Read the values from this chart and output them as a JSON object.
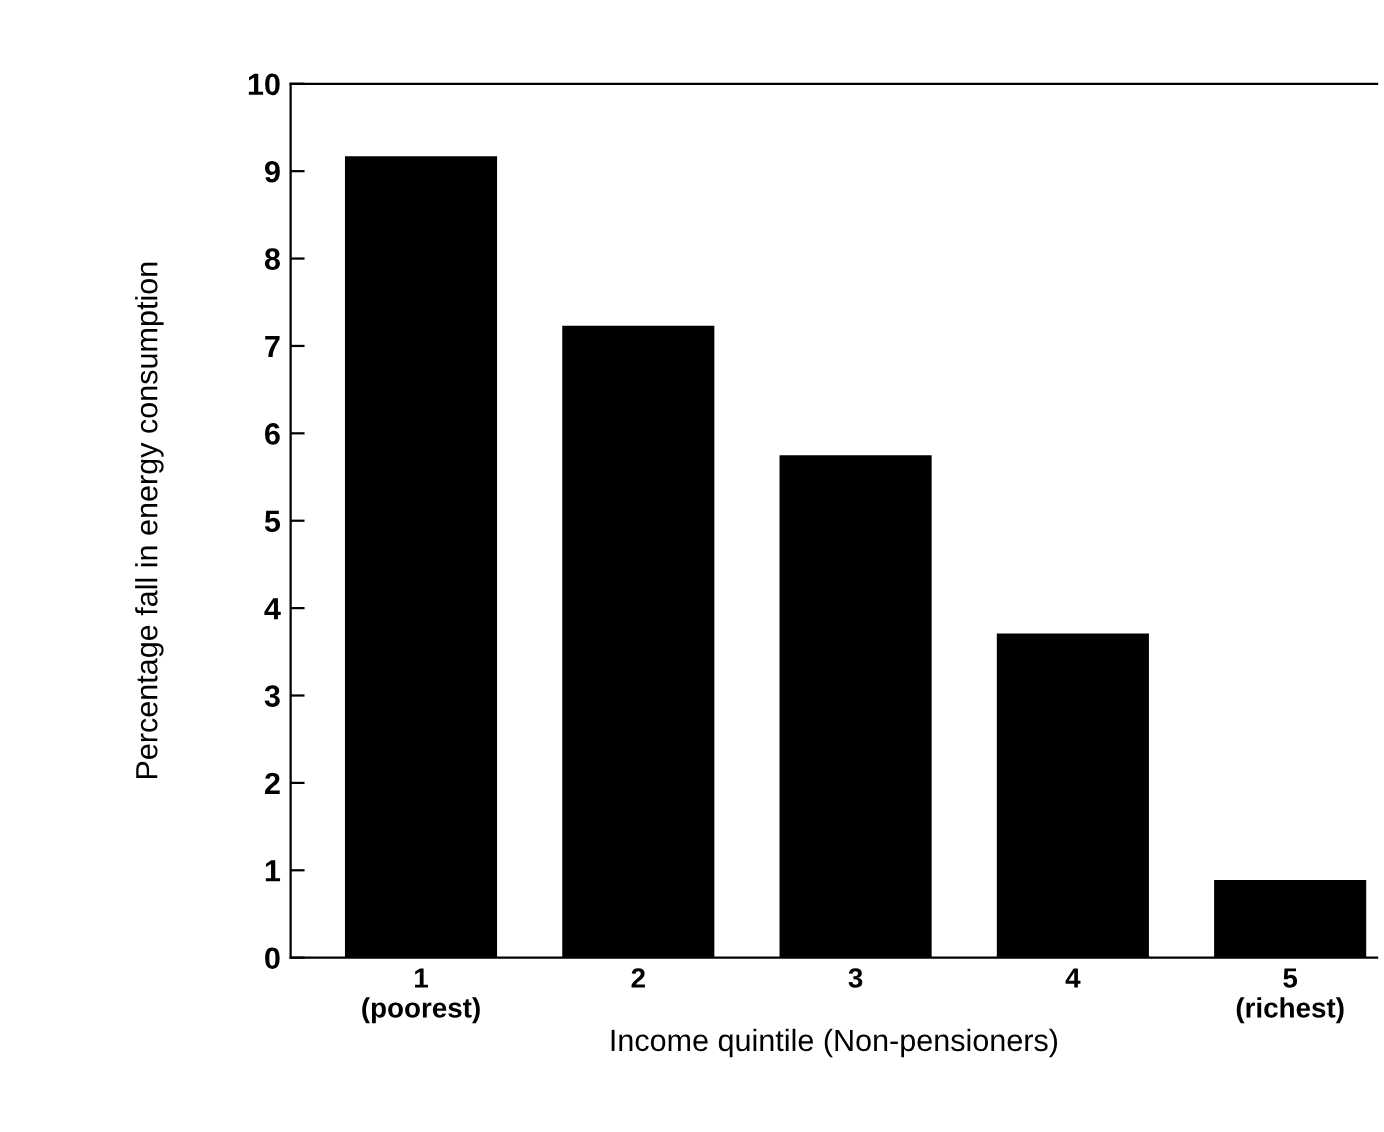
{
  "chart_data": {
    "type": "bar",
    "xlabel": "Income quintile (Non-pensioners)",
    "ylabel": "Percentage fall in energy consumption",
    "categories": [
      "1\n(poorest)",
      "2",
      "3",
      "4",
      "5\n(richest)"
    ],
    "values": [
      9.17,
      7.23,
      5.75,
      3.71,
      0.89
    ],
    "color": "#000000",
    "ylim": [
      0,
      10
    ],
    "yticks": [
      0,
      1,
      2,
      3,
      4,
      5,
      6,
      7,
      8,
      9,
      10
    ],
    "grid": false,
    "legend": false
  }
}
